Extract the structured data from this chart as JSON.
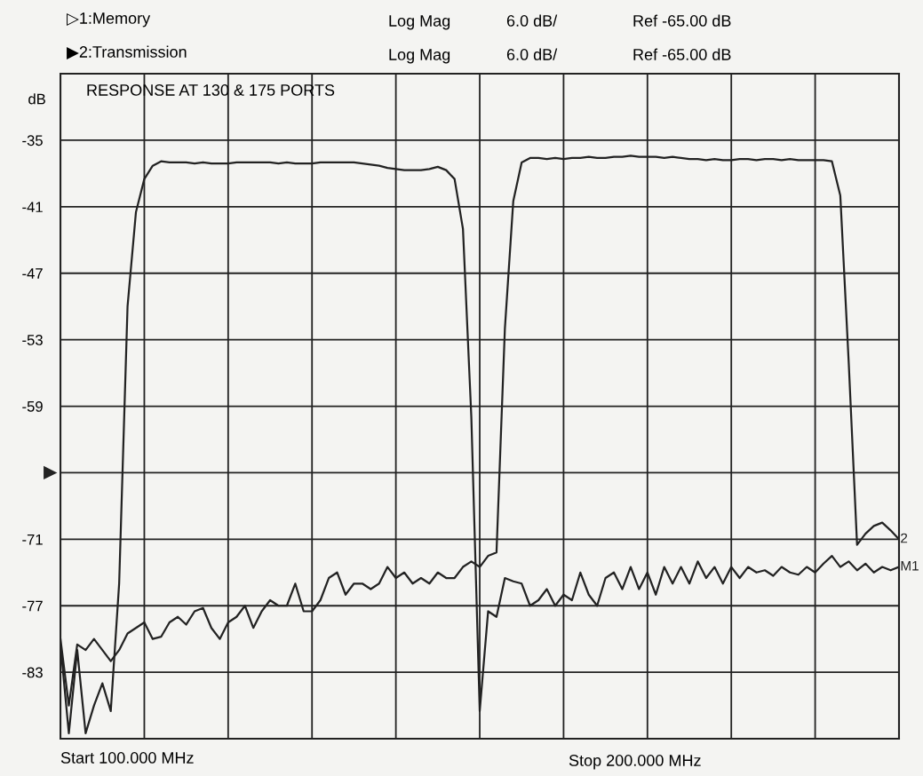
{
  "chart_data": {
    "type": "line",
    "ylabel": "dB",
    "ylim": [
      -89,
      -29
    ],
    "categories": [
      null,
      null,
      null,
      null,
      null,
      null,
      null,
      null,
      null,
      null,
      null,
      null,
      null,
      null,
      null,
      null,
      null,
      null,
      null,
      null,
      null,
      null,
      null,
      null,
      null,
      null,
      null,
      null,
      null,
      null,
      null,
      null,
      null,
      null,
      null,
      null,
      null,
      null,
      null,
      null,
      null,
      null,
      null,
      null,
      null,
      null,
      null,
      null,
      null,
      null,
      null,
      null,
      null,
      null,
      null,
      null,
      null,
      null,
      null,
      null,
      null,
      null,
      null,
      null,
      null,
      null,
      null,
      null,
      null,
      null,
      null,
      null,
      null,
      null,
      null,
      null,
      null,
      null,
      null,
      null,
      null,
      null,
      null,
      null,
      null,
      null,
      null,
      null,
      null,
      null,
      null,
      null,
      null,
      null,
      null,
      null,
      null,
      null,
      null,
      null,
      null
    ],
    "yticks": [
      -35,
      -41,
      -47,
      -53,
      -59,
      {
        "value": -65,
        "label": null
      },
      -71,
      -77,
      -83
    ],
    "tick_labels": "y",
    "grid": true,
    "line_style": "solid",
    "marker": "none",
    "annotations": [
      "▷1:Memory",
      "Log Mag",
      "6.0 dB/",
      "Ref -65.00 dB",
      "▶2:Transmission",
      "Log Mag",
      "6.0 dB/",
      "Ref -65.00 dB",
      "RESPONSE AT 130 & 175 PORTS",
      "Start 100.000 MHz",
      "Stop 200.000 MHz"
    ],
    "series": [
      {
        "name": "M1",
        "color": "#222222",
        "values": [
          -80.5,
          -88.5,
          -81,
          -88.5,
          -86,
          -84,
          -86.5,
          -75,
          -50,
          -41.5,
          -38.5,
          -37.3,
          -36.9,
          -37.0,
          -37.0,
          -37.0,
          -37.1,
          -37.0,
          -37.1,
          -37.1,
          -37.1,
          -37.0,
          -37.0,
          -37.0,
          -37.0,
          -37.0,
          -37.1,
          -37.0,
          -37.1,
          -37.1,
          -37.1,
          -37.0,
          -37.0,
          -37.0,
          -37.0,
          -37.0,
          -37.1,
          -37.2,
          -37.3,
          -37.5,
          -37.6,
          -37.7,
          -37.7,
          -37.7,
          -37.6,
          -37.4,
          -37.7,
          -38.5,
          -43,
          -60,
          -86.5,
          -77.5,
          -78,
          -74.5,
          -74.8,
          -75,
          -77,
          -76.5,
          -75.5,
          -77,
          -76,
          -76.5,
          -74,
          -76,
          -77,
          -74.5,
          -74,
          -75.5,
          -73.5,
          -75.5,
          -74,
          -76,
          -73.5,
          -75,
          -73.5,
          -75,
          -73,
          -74.5,
          -73.5,
          -75,
          -73.5,
          -74.5,
          -73.5,
          -74,
          -73.8,
          -74.3,
          -73.5,
          -74,
          -74.2,
          -73.5,
          -74,
          -73.2,
          -72.5,
          -73.5,
          -73,
          -73.8,
          -73.2,
          -74,
          -73.5,
          -73.8,
          -73.5
        ]
      },
      {
        "name": "2",
        "color": "#222222",
        "values": [
          -80,
          -86,
          -80.5,
          -81,
          -80,
          -81,
          -82,
          -81,
          -79.5,
          -79,
          -78.5,
          -80,
          -79.8,
          -78.5,
          -78,
          -78.7,
          -77.5,
          -77.2,
          -79,
          -80,
          -78.5,
          -78,
          -77,
          -79,
          -77.5,
          -76.5,
          -77,
          -77,
          -75,
          -77.5,
          -77.5,
          -76.5,
          -74.5,
          -74,
          -76,
          -75,
          -75,
          -75.5,
          -75,
          -73.5,
          -74.5,
          -74,
          -75,
          -74.5,
          -75,
          -74,
          -74.5,
          -74.5,
          -73.5,
          -73,
          -73.5,
          -72.5,
          -72.2,
          -52,
          -40.5,
          -37,
          -36.6,
          -36.6,
          -36.7,
          -36.6,
          -36.7,
          -36.6,
          -36.6,
          -36.5,
          -36.6,
          -36.6,
          -36.5,
          -36.5,
          -36.4,
          -36.5,
          -36.5,
          -36.5,
          -36.6,
          -36.5,
          -36.6,
          -36.7,
          -36.7,
          -36.8,
          -36.7,
          -36.8,
          -36.8,
          -36.7,
          -36.7,
          -36.8,
          -36.7,
          -36.7,
          -36.8,
          -36.7,
          -36.8,
          -36.8,
          -36.8,
          -36.8,
          -36.9,
          -40,
          -55,
          -71.5,
          -70.5,
          -69.8,
          -69.5,
          -70.2,
          -71
        ]
      }
    ]
  }
}
